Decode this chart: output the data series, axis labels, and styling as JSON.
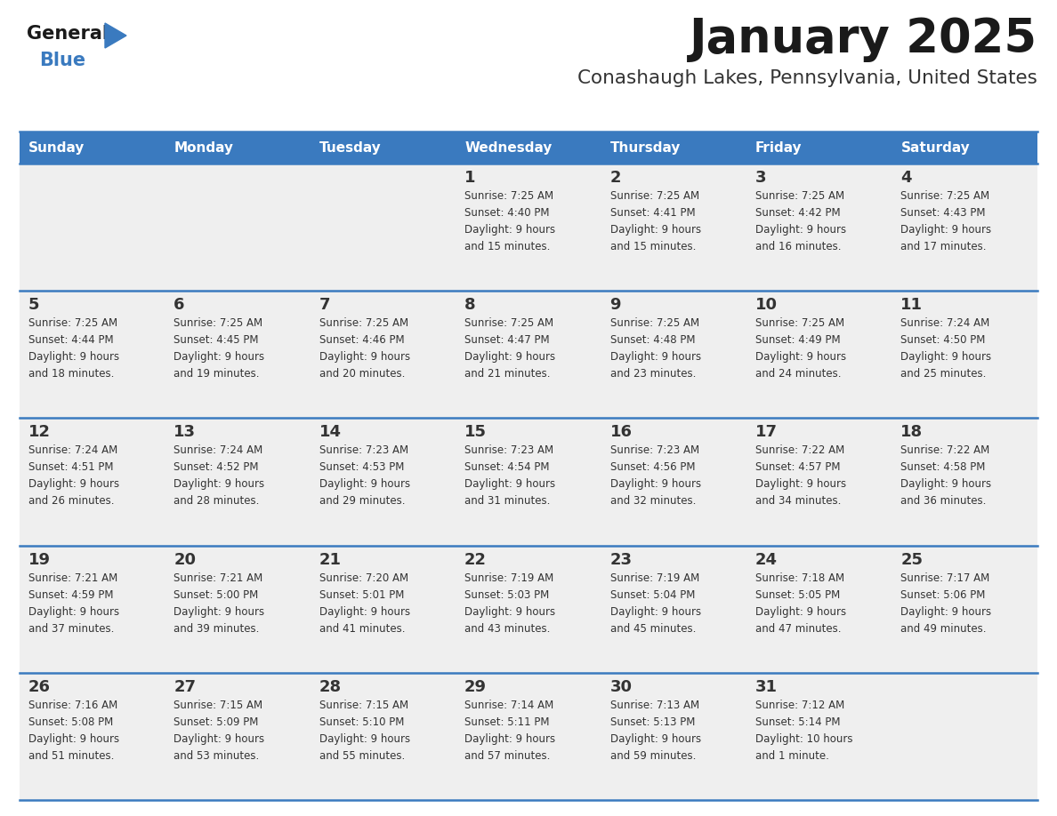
{
  "title": "January 2025",
  "subtitle": "Conashaugh Lakes, Pennsylvania, United States",
  "days_of_week": [
    "Sunday",
    "Monday",
    "Tuesday",
    "Wednesday",
    "Thursday",
    "Friday",
    "Saturday"
  ],
  "header_bg": "#3a7abf",
  "header_text_color": "#ffffff",
  "cell_bg_light": "#efefef",
  "divider_color": "#3a7abf",
  "text_color": "#333333",
  "title_color": "#1a1a1a",
  "subtitle_color": "#333333",
  "logo_general_color": "#1a1a1a",
  "logo_blue_color": "#3a7abf",
  "calendar_data": [
    [
      null,
      null,
      null,
      {
        "day": 1,
        "sunrise": "7:25 AM",
        "sunset": "4:40 PM",
        "daylight_h": "9 hours",
        "daylight_m": "and 15 minutes."
      },
      {
        "day": 2,
        "sunrise": "7:25 AM",
        "sunset": "4:41 PM",
        "daylight_h": "9 hours",
        "daylight_m": "and 15 minutes."
      },
      {
        "day": 3,
        "sunrise": "7:25 AM",
        "sunset": "4:42 PM",
        "daylight_h": "9 hours",
        "daylight_m": "and 16 minutes."
      },
      {
        "day": 4,
        "sunrise": "7:25 AM",
        "sunset": "4:43 PM",
        "daylight_h": "9 hours",
        "daylight_m": "and 17 minutes."
      }
    ],
    [
      {
        "day": 5,
        "sunrise": "7:25 AM",
        "sunset": "4:44 PM",
        "daylight_h": "9 hours",
        "daylight_m": "and 18 minutes."
      },
      {
        "day": 6,
        "sunrise": "7:25 AM",
        "sunset": "4:45 PM",
        "daylight_h": "9 hours",
        "daylight_m": "and 19 minutes."
      },
      {
        "day": 7,
        "sunrise": "7:25 AM",
        "sunset": "4:46 PM",
        "daylight_h": "9 hours",
        "daylight_m": "and 20 minutes."
      },
      {
        "day": 8,
        "sunrise": "7:25 AM",
        "sunset": "4:47 PM",
        "daylight_h": "9 hours",
        "daylight_m": "and 21 minutes."
      },
      {
        "day": 9,
        "sunrise": "7:25 AM",
        "sunset": "4:48 PM",
        "daylight_h": "9 hours",
        "daylight_m": "and 23 minutes."
      },
      {
        "day": 10,
        "sunrise": "7:25 AM",
        "sunset": "4:49 PM",
        "daylight_h": "9 hours",
        "daylight_m": "and 24 minutes."
      },
      {
        "day": 11,
        "sunrise": "7:24 AM",
        "sunset": "4:50 PM",
        "daylight_h": "9 hours",
        "daylight_m": "and 25 minutes."
      }
    ],
    [
      {
        "day": 12,
        "sunrise": "7:24 AM",
        "sunset": "4:51 PM",
        "daylight_h": "9 hours",
        "daylight_m": "and 26 minutes."
      },
      {
        "day": 13,
        "sunrise": "7:24 AM",
        "sunset": "4:52 PM",
        "daylight_h": "9 hours",
        "daylight_m": "and 28 minutes."
      },
      {
        "day": 14,
        "sunrise": "7:23 AM",
        "sunset": "4:53 PM",
        "daylight_h": "9 hours",
        "daylight_m": "and 29 minutes."
      },
      {
        "day": 15,
        "sunrise": "7:23 AM",
        "sunset": "4:54 PM",
        "daylight_h": "9 hours",
        "daylight_m": "and 31 minutes."
      },
      {
        "day": 16,
        "sunrise": "7:23 AM",
        "sunset": "4:56 PM",
        "daylight_h": "9 hours",
        "daylight_m": "and 32 minutes."
      },
      {
        "day": 17,
        "sunrise": "7:22 AM",
        "sunset": "4:57 PM",
        "daylight_h": "9 hours",
        "daylight_m": "and 34 minutes."
      },
      {
        "day": 18,
        "sunrise": "7:22 AM",
        "sunset": "4:58 PM",
        "daylight_h": "9 hours",
        "daylight_m": "and 36 minutes."
      }
    ],
    [
      {
        "day": 19,
        "sunrise": "7:21 AM",
        "sunset": "4:59 PM",
        "daylight_h": "9 hours",
        "daylight_m": "and 37 minutes."
      },
      {
        "day": 20,
        "sunrise": "7:21 AM",
        "sunset": "5:00 PM",
        "daylight_h": "9 hours",
        "daylight_m": "and 39 minutes."
      },
      {
        "day": 21,
        "sunrise": "7:20 AM",
        "sunset": "5:01 PM",
        "daylight_h": "9 hours",
        "daylight_m": "and 41 minutes."
      },
      {
        "day": 22,
        "sunrise": "7:19 AM",
        "sunset": "5:03 PM",
        "daylight_h": "9 hours",
        "daylight_m": "and 43 minutes."
      },
      {
        "day": 23,
        "sunrise": "7:19 AM",
        "sunset": "5:04 PM",
        "daylight_h": "9 hours",
        "daylight_m": "and 45 minutes."
      },
      {
        "day": 24,
        "sunrise": "7:18 AM",
        "sunset": "5:05 PM",
        "daylight_h": "9 hours",
        "daylight_m": "and 47 minutes."
      },
      {
        "day": 25,
        "sunrise": "7:17 AM",
        "sunset": "5:06 PM",
        "daylight_h": "9 hours",
        "daylight_m": "and 49 minutes."
      }
    ],
    [
      {
        "day": 26,
        "sunrise": "7:16 AM",
        "sunset": "5:08 PM",
        "daylight_h": "9 hours",
        "daylight_m": "and 51 minutes."
      },
      {
        "day": 27,
        "sunrise": "7:15 AM",
        "sunset": "5:09 PM",
        "daylight_h": "9 hours",
        "daylight_m": "and 53 minutes."
      },
      {
        "day": 28,
        "sunrise": "7:15 AM",
        "sunset": "5:10 PM",
        "daylight_h": "9 hours",
        "daylight_m": "and 55 minutes."
      },
      {
        "day": 29,
        "sunrise": "7:14 AM",
        "sunset": "5:11 PM",
        "daylight_h": "9 hours",
        "daylight_m": "and 57 minutes."
      },
      {
        "day": 30,
        "sunrise": "7:13 AM",
        "sunset": "5:13 PM",
        "daylight_h": "9 hours",
        "daylight_m": "and 59 minutes."
      },
      {
        "day": 31,
        "sunrise": "7:12 AM",
        "sunset": "5:14 PM",
        "daylight_h": "10 hours",
        "daylight_m": "and 1 minute."
      },
      null
    ]
  ]
}
